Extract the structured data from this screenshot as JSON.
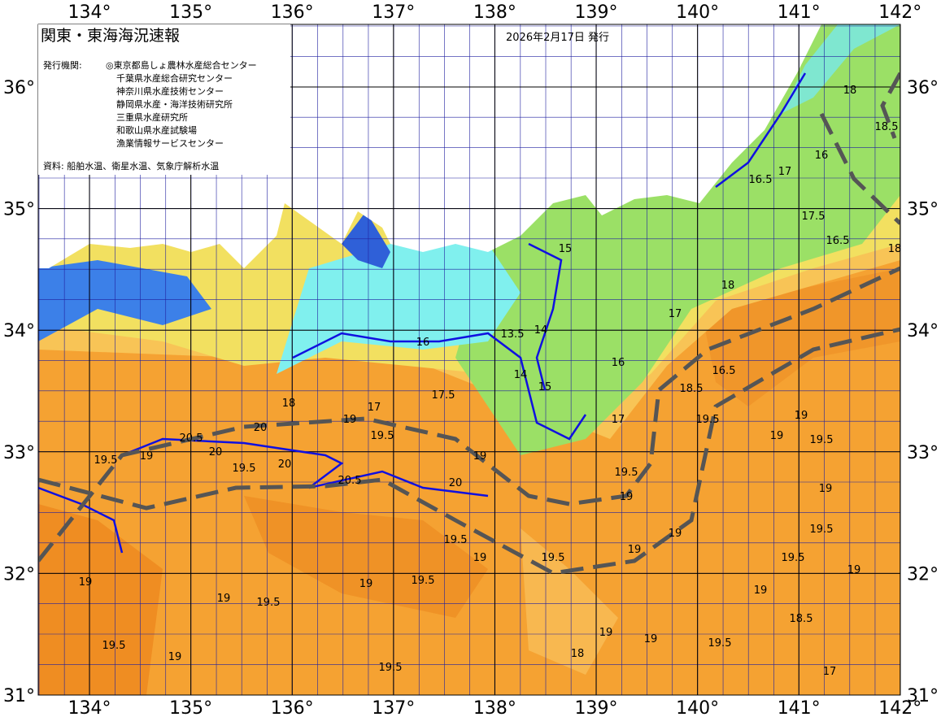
{
  "header": {
    "title": "関東・東海海況速報",
    "date": "2026年2月17日 発行",
    "issuers_label": "発行機関:",
    "issuers": [
      "◎東京都島しょ農林水産総合センター",
      "千葉県水産総合研究センター",
      "神奈川県水産技術センター",
      "静岡県水産・海洋技術研究所",
      "三重県水産研究所",
      "和歌山県水産試験場",
      "漁業情報サービスセンター"
    ],
    "sources": "資料: 船舶水温、衛星水温、気象庁解析水温"
  },
  "axes": {
    "longitudes": [
      {
        "value": 134,
        "label": "134°"
      },
      {
        "value": 135,
        "label": "135°"
      },
      {
        "value": 136,
        "label": "136°"
      },
      {
        "value": 137,
        "label": "137°"
      },
      {
        "value": 138,
        "label": "138°"
      },
      {
        "value": 139,
        "label": "139°"
      },
      {
        "value": 140,
        "label": "140°"
      },
      {
        "value": 141,
        "label": "141°"
      },
      {
        "value": 142,
        "label": "142°"
      }
    ],
    "latitudes": [
      {
        "value": 36,
        "label": "36°"
      },
      {
        "value": 35,
        "label": "35°"
      },
      {
        "value": 34,
        "label": "34°"
      },
      {
        "value": 33,
        "label": "33°"
      },
      {
        "value": 32,
        "label": "32°"
      },
      {
        "value": 31,
        "label": "31°"
      }
    ]
  },
  "contour_labels": [
    "18",
    "18.5",
    "16",
    "16.5",
    "17",
    "17.5",
    "16.5",
    "18",
    "18",
    "17",
    "16.5",
    "16",
    "17",
    "15",
    "14",
    "14",
    "13.5",
    "15",
    "16",
    "17.5",
    "18",
    "17",
    "19",
    "20",
    "20.5",
    "20",
    "20",
    "20.5",
    "20",
    "19.5",
    "19",
    "19.5",
    "19",
    "19.5",
    "19",
    "19.5",
    "19.5",
    "19",
    "19.5",
    "19",
    "19",
    "19.5",
    "18.5",
    "19",
    "19.5",
    "19",
    "19",
    "19.5",
    "19",
    "19.5",
    "19",
    "18",
    "19",
    "19",
    "19.5",
    "18.5",
    "17",
    "19.5",
    "19",
    "19.5",
    "19",
    "19.5",
    "19",
    "19.5",
    "19"
  ]
}
